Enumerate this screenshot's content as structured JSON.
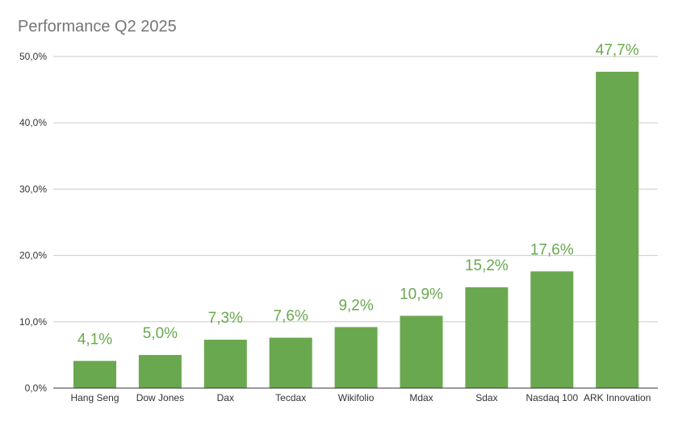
{
  "chart_data": {
    "type": "bar",
    "title": "Performance Q2 2025",
    "categories": [
      "Hang Seng",
      "Dow Jones",
      "Dax",
      "Tecdax",
      "Wikifolio",
      "Mdax",
      "Sdax",
      "Nasdaq 100",
      "ARK Innovation"
    ],
    "values": [
      4.1,
      5.0,
      7.3,
      7.6,
      9.2,
      10.9,
      15.2,
      17.6,
      47.7
    ],
    "data_labels": [
      "4,1%",
      "5,0%",
      "7,3%",
      "7,6%",
      "9,2%",
      "10,9%",
      "15,2%",
      "17,6%",
      "47,7%"
    ],
    "xlabel": "",
    "ylabel": "",
    "ylim": [
      0,
      50
    ],
    "yticks": [
      0,
      10,
      20,
      30,
      40,
      50
    ],
    "ytick_labels": [
      "0,0%",
      "10,0%",
      "20,0%",
      "30,0%",
      "40,0%",
      "50,0%"
    ],
    "grid": true,
    "legend": "none",
    "bar_color": "#6aa84f",
    "label_color": "#6aa84f",
    "grid_color": "#cccccc",
    "axis_color": "#333333",
    "title_color": "#757575"
  }
}
